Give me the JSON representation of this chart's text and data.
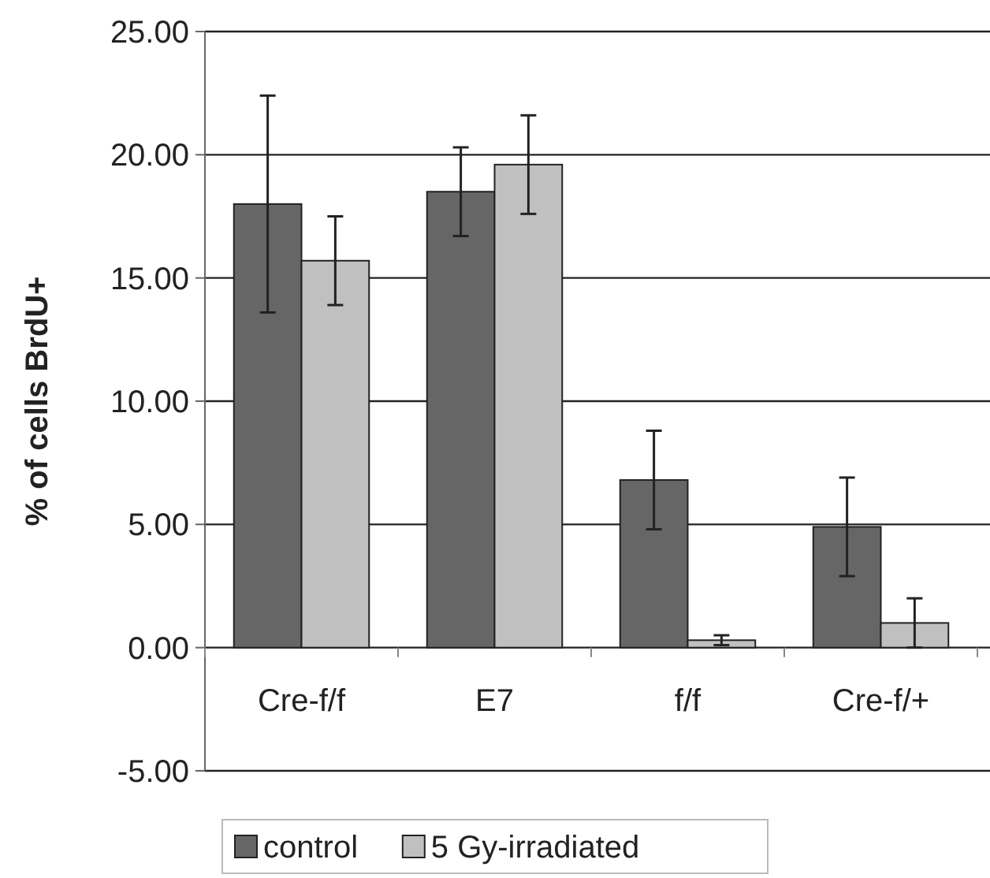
{
  "chart_data": {
    "type": "bar",
    "ylabel": "% of cells BrdU+",
    "categories": [
      "Cre-f/f",
      "E7",
      "f/f",
      "Cre-f/+"
    ],
    "series": [
      {
        "name": "control",
        "color": "#666666",
        "values": [
          18.0,
          18.5,
          6.8,
          4.9
        ],
        "errors": [
          4.4,
          1.8,
          2.0,
          2.0
        ]
      },
      {
        "name": "5 Gy-irradiated",
        "color": "#c0c0c0",
        "values": [
          15.7,
          19.6,
          0.3,
          1.0
        ],
        "errors": [
          1.8,
          2.0,
          0.2,
          1.0
        ]
      }
    ],
    "ylim": [
      -5,
      25
    ],
    "yticks": [
      {
        "value": -5,
        "label": "-5.00"
      },
      {
        "value": 0,
        "label": "0.00"
      },
      {
        "value": 5,
        "label": "5.00"
      },
      {
        "value": 10,
        "label": "10.00"
      },
      {
        "value": 15,
        "label": "15.00"
      },
      {
        "value": 20,
        "label": "20.00"
      },
      {
        "value": 25,
        "label": "25.00"
      }
    ],
    "grid": "y",
    "legend": "bottom"
  }
}
